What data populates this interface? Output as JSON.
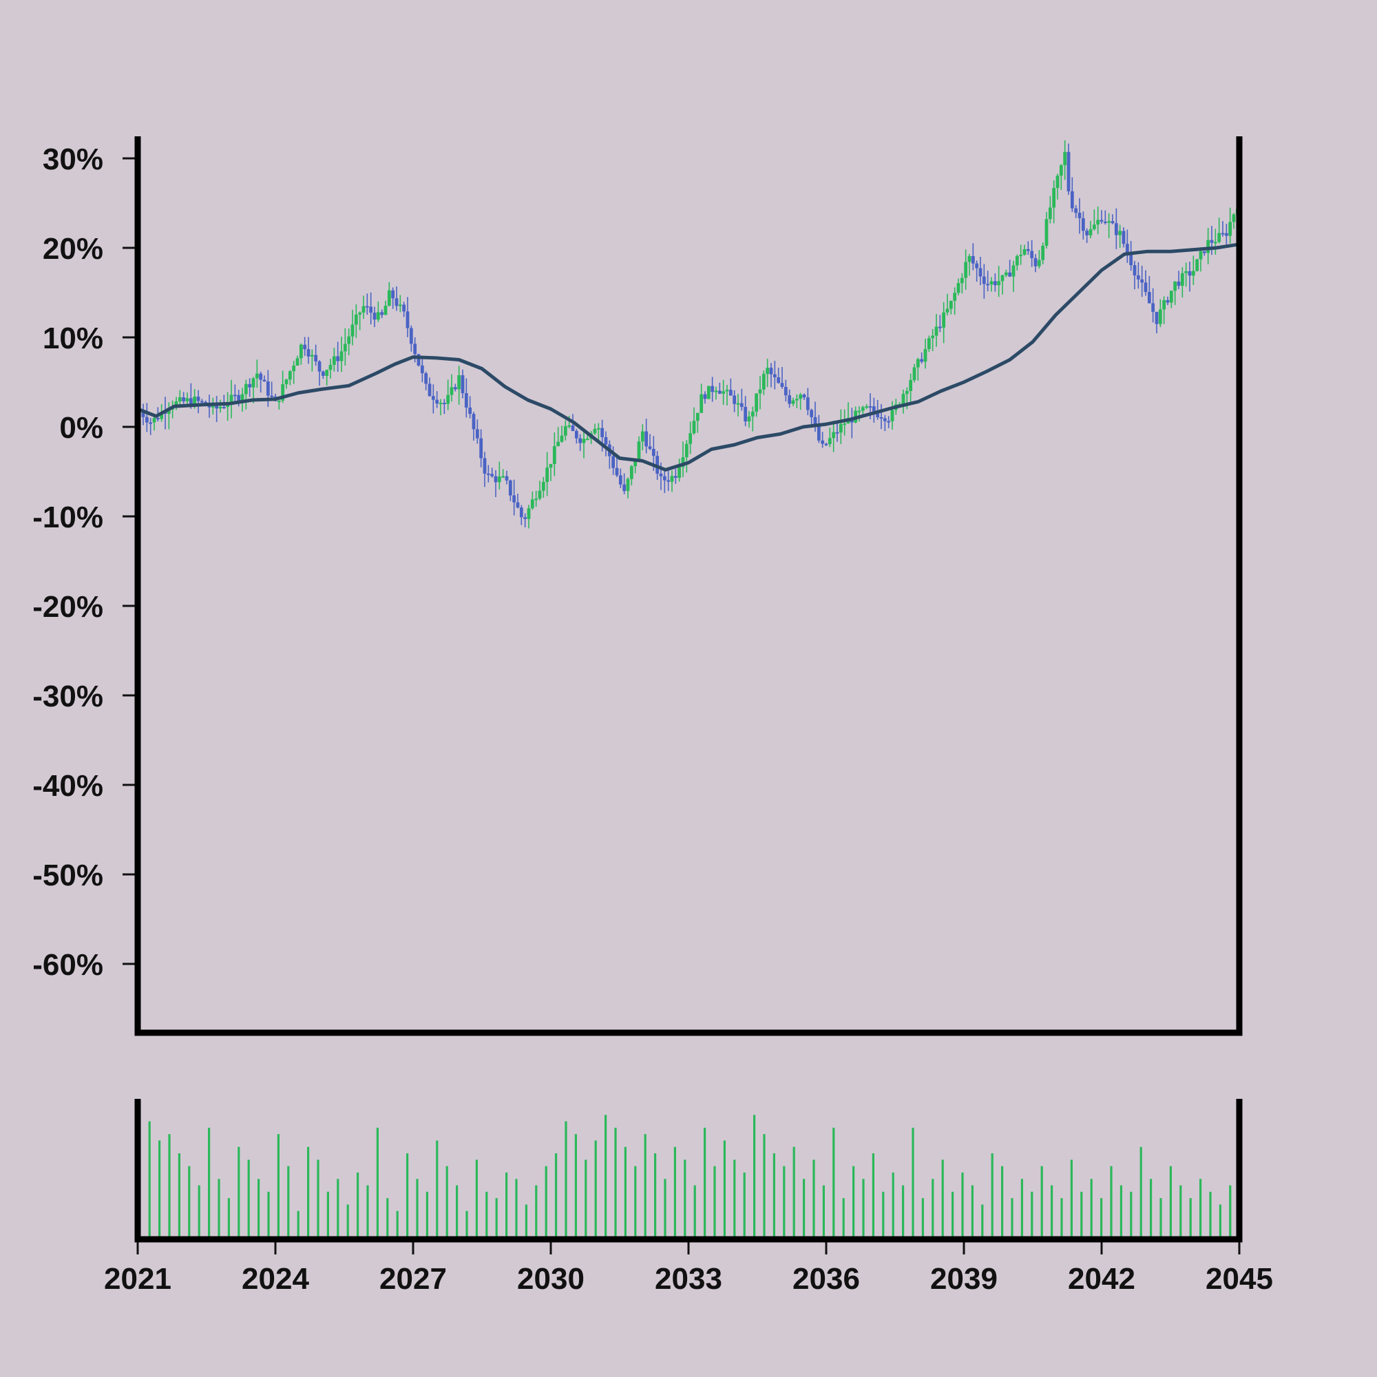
{
  "chart_data": [
    {
      "type": "candlestick",
      "title": "",
      "xlabel": "",
      "ylabel": "",
      "x_range": [
        2021,
        2045
      ],
      "ylim": [
        -67,
        32
      ],
      "y_ticks": [
        30,
        20,
        10,
        0,
        -10,
        -20,
        -30,
        -40,
        -50,
        -60
      ],
      "y_tick_labels": [
        "30%",
        "20%",
        "10%",
        "0%",
        "-10%",
        "-20%",
        "-30%",
        "-40%",
        "-50%",
        "-60%"
      ],
      "grid": false,
      "legend": "none",
      "up_color": "#2bb85a",
      "down_color": "#4a63c4",
      "close_anchor_points": [
        [
          2021.0,
          2.0
        ],
        [
          2021.3,
          0.5
        ],
        [
          2021.7,
          2.5
        ],
        [
          2022.2,
          3.0
        ],
        [
          2022.7,
          2.0
        ],
        [
          2023.2,
          3.5
        ],
        [
          2023.6,
          6.0
        ],
        [
          2024.0,
          2.5
        ],
        [
          2024.6,
          9.5
        ],
        [
          2025.0,
          6.0
        ],
        [
          2025.4,
          8.0
        ],
        [
          2025.9,
          13.5
        ],
        [
          2026.3,
          12.0
        ],
        [
          2026.5,
          15.0
        ],
        [
          2026.8,
          12.5
        ],
        [
          2027.3,
          4.0
        ],
        [
          2027.7,
          2.5
        ],
        [
          2028.0,
          5.5
        ],
        [
          2028.6,
          -5.5
        ],
        [
          2029.0,
          -6.0
        ],
        [
          2029.4,
          -10.5
        ],
        [
          2029.9,
          -5.0
        ],
        [
          2030.3,
          0.0
        ],
        [
          2030.7,
          -1.5
        ],
        [
          2031.0,
          0.5
        ],
        [
          2031.3,
          -3.5
        ],
        [
          2031.6,
          -7.5
        ],
        [
          2032.0,
          -0.5
        ],
        [
          2032.4,
          -6.0
        ],
        [
          2032.7,
          -5.5
        ],
        [
          2033.3,
          3.5
        ],
        [
          2033.6,
          4.5
        ],
        [
          2034.0,
          3.0
        ],
        [
          2034.3,
          0.5
        ],
        [
          2034.7,
          6.5
        ],
        [
          2035.2,
          3.0
        ],
        [
          2035.5,
          4.0
        ],
        [
          2035.9,
          -2.5
        ],
        [
          2036.4,
          0.5
        ],
        [
          2036.9,
          2.0
        ],
        [
          2037.4,
          1.0
        ],
        [
          2037.9,
          6.0
        ],
        [
          2038.3,
          10.0
        ],
        [
          2038.7,
          13.5
        ],
        [
          2039.1,
          19.0
        ],
        [
          2039.5,
          16.0
        ],
        [
          2039.9,
          16.5
        ],
        [
          2040.3,
          20.0
        ],
        [
          2040.6,
          18.0
        ],
        [
          2040.9,
          25.0
        ],
        [
          2041.2,
          30.5
        ],
        [
          2041.3,
          25.5
        ],
        [
          2041.7,
          21.5
        ],
        [
          2042.0,
          23.5
        ],
        [
          2042.4,
          21.5
        ],
        [
          2042.8,
          16.5
        ],
        [
          2043.2,
          12.0
        ],
        [
          2043.6,
          16.0
        ],
        [
          2044.0,
          17.5
        ],
        [
          2044.3,
          20.5
        ],
        [
          2044.7,
          21.5
        ],
        [
          2045.0,
          25.5
        ]
      ],
      "moving_average": [
        [
          2021.0,
          2.0
        ],
        [
          2021.4,
          1.2
        ],
        [
          2021.8,
          2.3
        ],
        [
          2022.5,
          2.5
        ],
        [
          2023.0,
          2.6
        ],
        [
          2023.5,
          3.0
        ],
        [
          2024.0,
          3.1
        ],
        [
          2024.5,
          3.8
        ],
        [
          2025.0,
          4.2
        ],
        [
          2025.6,
          4.6
        ],
        [
          2026.2,
          6.0
        ],
        [
          2026.6,
          7.0
        ],
        [
          2027.0,
          7.8
        ],
        [
          2027.5,
          7.7
        ],
        [
          2028.0,
          7.5
        ],
        [
          2028.5,
          6.5
        ],
        [
          2029.0,
          4.5
        ],
        [
          2029.5,
          3.0
        ],
        [
          2030.0,
          2.0
        ],
        [
          2030.5,
          0.5
        ],
        [
          2031.0,
          -1.5
        ],
        [
          2031.5,
          -3.5
        ],
        [
          2032.0,
          -3.8
        ],
        [
          2032.5,
          -4.8
        ],
        [
          2033.0,
          -4.0
        ],
        [
          2033.5,
          -2.5
        ],
        [
          2034.0,
          -2.0
        ],
        [
          2034.5,
          -1.2
        ],
        [
          2035.0,
          -0.8
        ],
        [
          2035.5,
          0.0
        ],
        [
          2036.0,
          0.3
        ],
        [
          2036.5,
          0.8
        ],
        [
          2037.0,
          1.5
        ],
        [
          2037.5,
          2.2
        ],
        [
          2038.0,
          2.8
        ],
        [
          2038.5,
          4.0
        ],
        [
          2039.0,
          5.0
        ],
        [
          2039.5,
          6.2
        ],
        [
          2040.0,
          7.5
        ],
        [
          2040.5,
          9.5
        ],
        [
          2041.0,
          12.5
        ],
        [
          2041.5,
          15.0
        ],
        [
          2042.0,
          17.5
        ],
        [
          2042.5,
          19.3
        ],
        [
          2043.0,
          19.6
        ],
        [
          2043.5,
          19.6
        ],
        [
          2044.0,
          19.8
        ],
        [
          2044.5,
          20.0
        ],
        [
          2045.0,
          20.4
        ]
      ],
      "moving_average_color": "#2c4a66"
    },
    {
      "type": "bar",
      "title": "",
      "xlabel": "",
      "ylabel": "",
      "x_range": [
        2021,
        2045
      ],
      "x_ticks": [
        2021,
        2024,
        2027,
        2030,
        2033,
        2036,
        2039,
        2042,
        2045
      ],
      "x_tick_labels": [
        "2021",
        "2024",
        "2027",
        "2030",
        "2033",
        "2036",
        "2039",
        "2042",
        "2045"
      ],
      "bar_color": "#2bb85a",
      "volume_relative": [
        0.9,
        0.75,
        0.8,
        0.65,
        0.55,
        0.4,
        0.85,
        0.45,
        0.3,
        0.7,
        0.6,
        0.45,
        0.35,
        0.8,
        0.55,
        0.2,
        0.7,
        0.6,
        0.35,
        0.45,
        0.25,
        0.5,
        0.4,
        0.85,
        0.3,
        0.2,
        0.65,
        0.45,
        0.35,
        0.75,
        0.55,
        0.4,
        0.2,
        0.6,
        0.35,
        0.3,
        0.5,
        0.45,
        0.25,
        0.4,
        0.55,
        0.65,
        0.9,
        0.8,
        0.6,
        0.75,
        0.95,
        0.85,
        0.7,
        0.55,
        0.8,
        0.65,
        0.45,
        0.7,
        0.6,
        0.4,
        0.85,
        0.55,
        0.75,
        0.6,
        0.5,
        0.95,
        0.8,
        0.65,
        0.55,
        0.7,
        0.45,
        0.6,
        0.4,
        0.85,
        0.3,
        0.55,
        0.45,
        0.65,
        0.35,
        0.5,
        0.4,
        0.85,
        0.3,
        0.45,
        0.6,
        0.35,
        0.5,
        0.4,
        0.25,
        0.65,
        0.55,
        0.3,
        0.45,
        0.35,
        0.55,
        0.4,
        0.3,
        0.6,
        0.35,
        0.45,
        0.3,
        0.55,
        0.4,
        0.35,
        0.7,
        0.45,
        0.3,
        0.55,
        0.4,
        0.3,
        0.45,
        0.35,
        0.25,
        0.4
      ]
    }
  ]
}
